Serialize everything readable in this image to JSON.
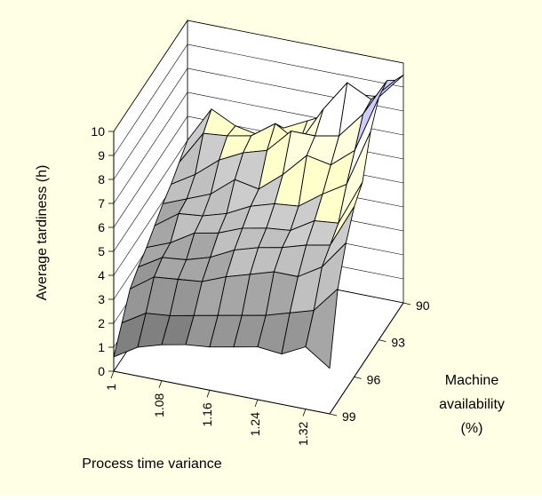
{
  "chart_data": {
    "type": "surface3d",
    "title": "",
    "zlabel": "Average tardiness (h)",
    "xlabel": "Process time variance",
    "ylabel_lines": [
      "Machine",
      "availability",
      "(%)"
    ],
    "z_ticks": [
      "0",
      "1",
      "2",
      "3",
      "4",
      "5",
      "6",
      "7",
      "8",
      "9",
      "10"
    ],
    "zlim": [
      0,
      10
    ],
    "x_ticks": [
      "1",
      "1.08",
      "1.16",
      "1.24",
      "1.32"
    ],
    "x_range": [
      1,
      1.36
    ],
    "y_ticks": [
      "90",
      "93",
      "96",
      "99"
    ],
    "y_range": [
      90,
      99
    ],
    "grid": true,
    "legend": "none",
    "colors": {
      "background": "#ffffe5",
      "wall": "#ffffff",
      "grid": "#000000",
      "band_0_1": "#404040",
      "band_1_2": "#808080",
      "band_2_3": "#969696",
      "band_3_4": "#a6a6a6",
      "band_4_5": "#c0c0c0",
      "band_5_6": "#cccccc",
      "band_6_7": "#ffffcc",
      "band_7_8": "#ffffe0",
      "band_8_9": "#ffffff",
      "band_9_10": "#ccccff",
      "band_10_plus": "#000080"
    },
    "surface": {
      "x": [
        1,
        1.04,
        1.08,
        1.12,
        1.16,
        1.2,
        1.24,
        1.28,
        1.32,
        1.36
      ],
      "y": [
        90,
        91,
        92,
        93,
        94,
        95,
        96,
        97,
        98,
        99
      ],
      "z": [
        [
          5.0,
          6.5,
          6.0,
          5.8,
          6.3,
          6.8,
          7.3,
          8.3,
          8.4,
          9.5
        ],
        [
          4.6,
          6.0,
          6.1,
          6.3,
          7.0,
          6.4,
          8.0,
          9.3,
          8.8,
          9.8
        ],
        [
          4.2,
          4.8,
          5.6,
          6.1,
          6.4,
          7.4,
          7.4,
          7.6,
          8.7,
          10.3
        ],
        [
          3.9,
          4.3,
          4.7,
          5.5,
          5.3,
          6.1,
          7.1,
          6.9,
          7.7,
          10.1
        ],
        [
          3.5,
          4.2,
          4.3,
          4.6,
          5.1,
          5.4,
          5.5,
          6.2,
          6.8,
          9.2
        ],
        [
          3.1,
          3.5,
          4.1,
          4.3,
          4.7,
          4.9,
          5.0,
          5.6,
          5.7,
          7.6
        ],
        [
          2.8,
          3.4,
          3.5,
          3.8,
          4.3,
          4.6,
          4.8,
          5.1,
          5.3,
          7.1
        ],
        [
          2.4,
          3.1,
          3.2,
          3.3,
          3.7,
          4.0,
          4.3,
          4.3,
          4.9,
          6.1
        ],
        [
          1.5,
          2.1,
          2.2,
          2.4,
          2.6,
          2.8,
          3.0,
          3.3,
          3.6,
          4.7
        ],
        [
          0.6,
          1.2,
          1.5,
          1.7,
          1.8,
          2.0,
          2.2,
          2.1,
          2.6,
          1.9
        ]
      ]
    }
  }
}
